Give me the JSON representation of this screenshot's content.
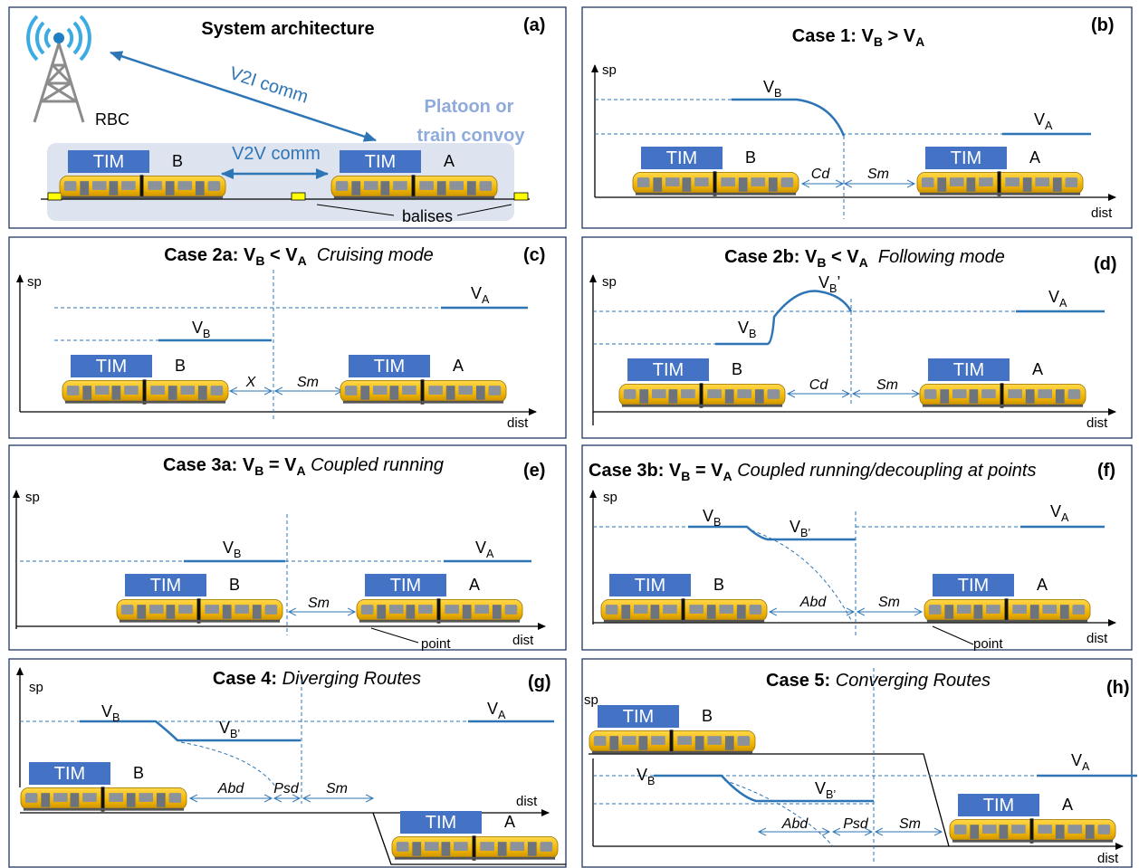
{
  "panels": [
    {
      "tag": "(a)",
      "title": [
        {
          "t": "System architecture"
        }
      ],
      "rbc": "RBC",
      "v2i": "V2I comm",
      "v2v": "V2V comm",
      "platoon": [
        "Platoon or",
        "train convoy"
      ],
      "balises": "balises",
      "trains": [
        {
          "tim": "TIM",
          "name": "B"
        },
        {
          "tim": "TIM",
          "name": "A"
        }
      ]
    },
    {
      "tag": "(b)",
      "title": [
        {
          "t": "Case 1: V"
        },
        {
          "t": "B",
          "s": "sub"
        },
        {
          "t": " > V"
        },
        {
          "t": "A",
          "s": "sub"
        }
      ],
      "axis": {
        "y": "sp",
        "x": "dist"
      },
      "speeds": [
        [
          {
            "t": "V"
          },
          {
            "t": "B",
            "s": "sub"
          }
        ],
        [
          {
            "t": "V"
          },
          {
            "t": "A",
            "s": "sub"
          }
        ]
      ],
      "distances": [
        "Cd",
        "Sm"
      ],
      "trains": [
        {
          "tim": "TIM",
          "name": "B"
        },
        {
          "tim": "TIM",
          "name": "A"
        }
      ]
    },
    {
      "tag": "(c)",
      "title": [
        {
          "t": "Case 2a: V"
        },
        {
          "t": "B",
          "s": "sub"
        },
        {
          "t": " < V"
        },
        {
          "t": "A",
          "s": "sub"
        },
        {
          "t": "  Cruising mode",
          "s": "i"
        }
      ],
      "axis": {
        "y": "sp",
        "x": "dist"
      },
      "speeds": [
        [
          {
            "t": "V"
          },
          {
            "t": "A",
            "s": "sub"
          }
        ],
        [
          {
            "t": "V"
          },
          {
            "t": "B",
            "s": "sub"
          }
        ]
      ],
      "distances": [
        "X",
        "Sm"
      ],
      "trains": [
        {
          "tim": "TIM",
          "name": "B"
        },
        {
          "tim": "TIM",
          "name": "A"
        }
      ]
    },
    {
      "tag": "(d)",
      "title": [
        {
          "t": "Case 2b: V"
        },
        {
          "t": "B",
          "s": "sub"
        },
        {
          "t": " < V"
        },
        {
          "t": "A",
          "s": "sub"
        },
        {
          "t": "  Following mode",
          "s": "i"
        }
      ],
      "axis": {
        "y": "sp",
        "x": "dist"
      },
      "speeds": [
        [
          {
            "t": "V"
          },
          {
            "t": "B",
            "s": "sub"
          },
          {
            "t": "’"
          }
        ],
        [
          {
            "t": "V"
          },
          {
            "t": "B",
            "s": "sub"
          }
        ],
        [
          {
            "t": "V"
          },
          {
            "t": "A",
            "s": "sub"
          }
        ]
      ],
      "distances": [
        "Cd",
        "Sm"
      ],
      "trains": [
        {
          "tim": "TIM",
          "name": "B"
        },
        {
          "tim": "TIM",
          "name": "A"
        }
      ]
    },
    {
      "tag": "(e)",
      "title": [
        {
          "t": "Case 3a: V"
        },
        {
          "t": "B",
          "s": "sub"
        },
        {
          "t": " = V"
        },
        {
          "t": "A",
          "s": "sub"
        },
        {
          "t": " Coupled running",
          "s": "i"
        }
      ],
      "axis": {
        "y": "sp",
        "x": "dist"
      },
      "speeds": [
        [
          {
            "t": "V"
          },
          {
            "t": "B",
            "s": "sub"
          }
        ],
        [
          {
            "t": "V"
          },
          {
            "t": "A",
            "s": "sub"
          }
        ]
      ],
      "distances": [
        "Sm"
      ],
      "point": "point",
      "trains": [
        {
          "tim": "TIM",
          "name": "B"
        },
        {
          "tim": "TIM",
          "name": "A"
        }
      ]
    },
    {
      "tag": "(f)",
      "title": [
        {
          "t": "Case 3b: V"
        },
        {
          "t": "B",
          "s": "sub"
        },
        {
          "t": " = V"
        },
        {
          "t": "A",
          "s": "sub"
        },
        {
          "t": " Coupled running/decoupling at points",
          "s": "i"
        }
      ],
      "axis": {
        "y": "sp",
        "x": "dist"
      },
      "speeds": [
        [
          {
            "t": "V"
          },
          {
            "t": "B",
            "s": "sub"
          }
        ],
        [
          {
            "t": "V"
          },
          {
            "t": "B’",
            "s": "sub"
          }
        ],
        [
          {
            "t": "V"
          },
          {
            "t": "A",
            "s": "sub"
          }
        ]
      ],
      "distances": [
        "Abd",
        "Sm"
      ],
      "point": "point",
      "trains": [
        {
          "tim": "TIM",
          "name": "B"
        },
        {
          "tim": "TIM",
          "name": "A"
        }
      ]
    },
    {
      "tag": "(g)",
      "title": [
        {
          "t": "Case 4: "
        },
        {
          "t": "Diverging Routes",
          "s": "i"
        }
      ],
      "axis": {
        "y": "sp",
        "x": "dist"
      },
      "speeds": [
        [
          {
            "t": "V"
          },
          {
            "t": "B",
            "s": "sub"
          }
        ],
        [
          {
            "t": "V"
          },
          {
            "t": "B’",
            "s": "sub"
          }
        ],
        [
          {
            "t": "V"
          },
          {
            "t": "A",
            "s": "sub"
          }
        ]
      ],
      "distances": [
        "Abd",
        "Psd",
        "Sm"
      ],
      "trains": [
        {
          "tim": "TIM",
          "name": "B"
        },
        {
          "tim": "TIM",
          "name": "A"
        }
      ]
    },
    {
      "tag": "(h)",
      "title": [
        {
          "t": "Case 5: "
        },
        {
          "t": "Converging Routes",
          "s": "i"
        }
      ],
      "axis": {
        "y": "sp",
        "x": "dist"
      },
      "speeds": [
        [
          {
            "t": "V"
          },
          {
            "t": "A",
            "s": "sub"
          }
        ],
        [
          {
            "t": "V"
          },
          {
            "t": "B",
            "s": "sub"
          }
        ],
        [
          {
            "t": "V"
          },
          {
            "t": "B’",
            "s": "sub"
          }
        ]
      ],
      "distances": [
        "Abd",
        "Psd",
        "Sm"
      ],
      "trains": [
        {
          "tim": "TIM",
          "name": "B"
        },
        {
          "tim": "TIM",
          "name": "A"
        }
      ]
    }
  ]
}
